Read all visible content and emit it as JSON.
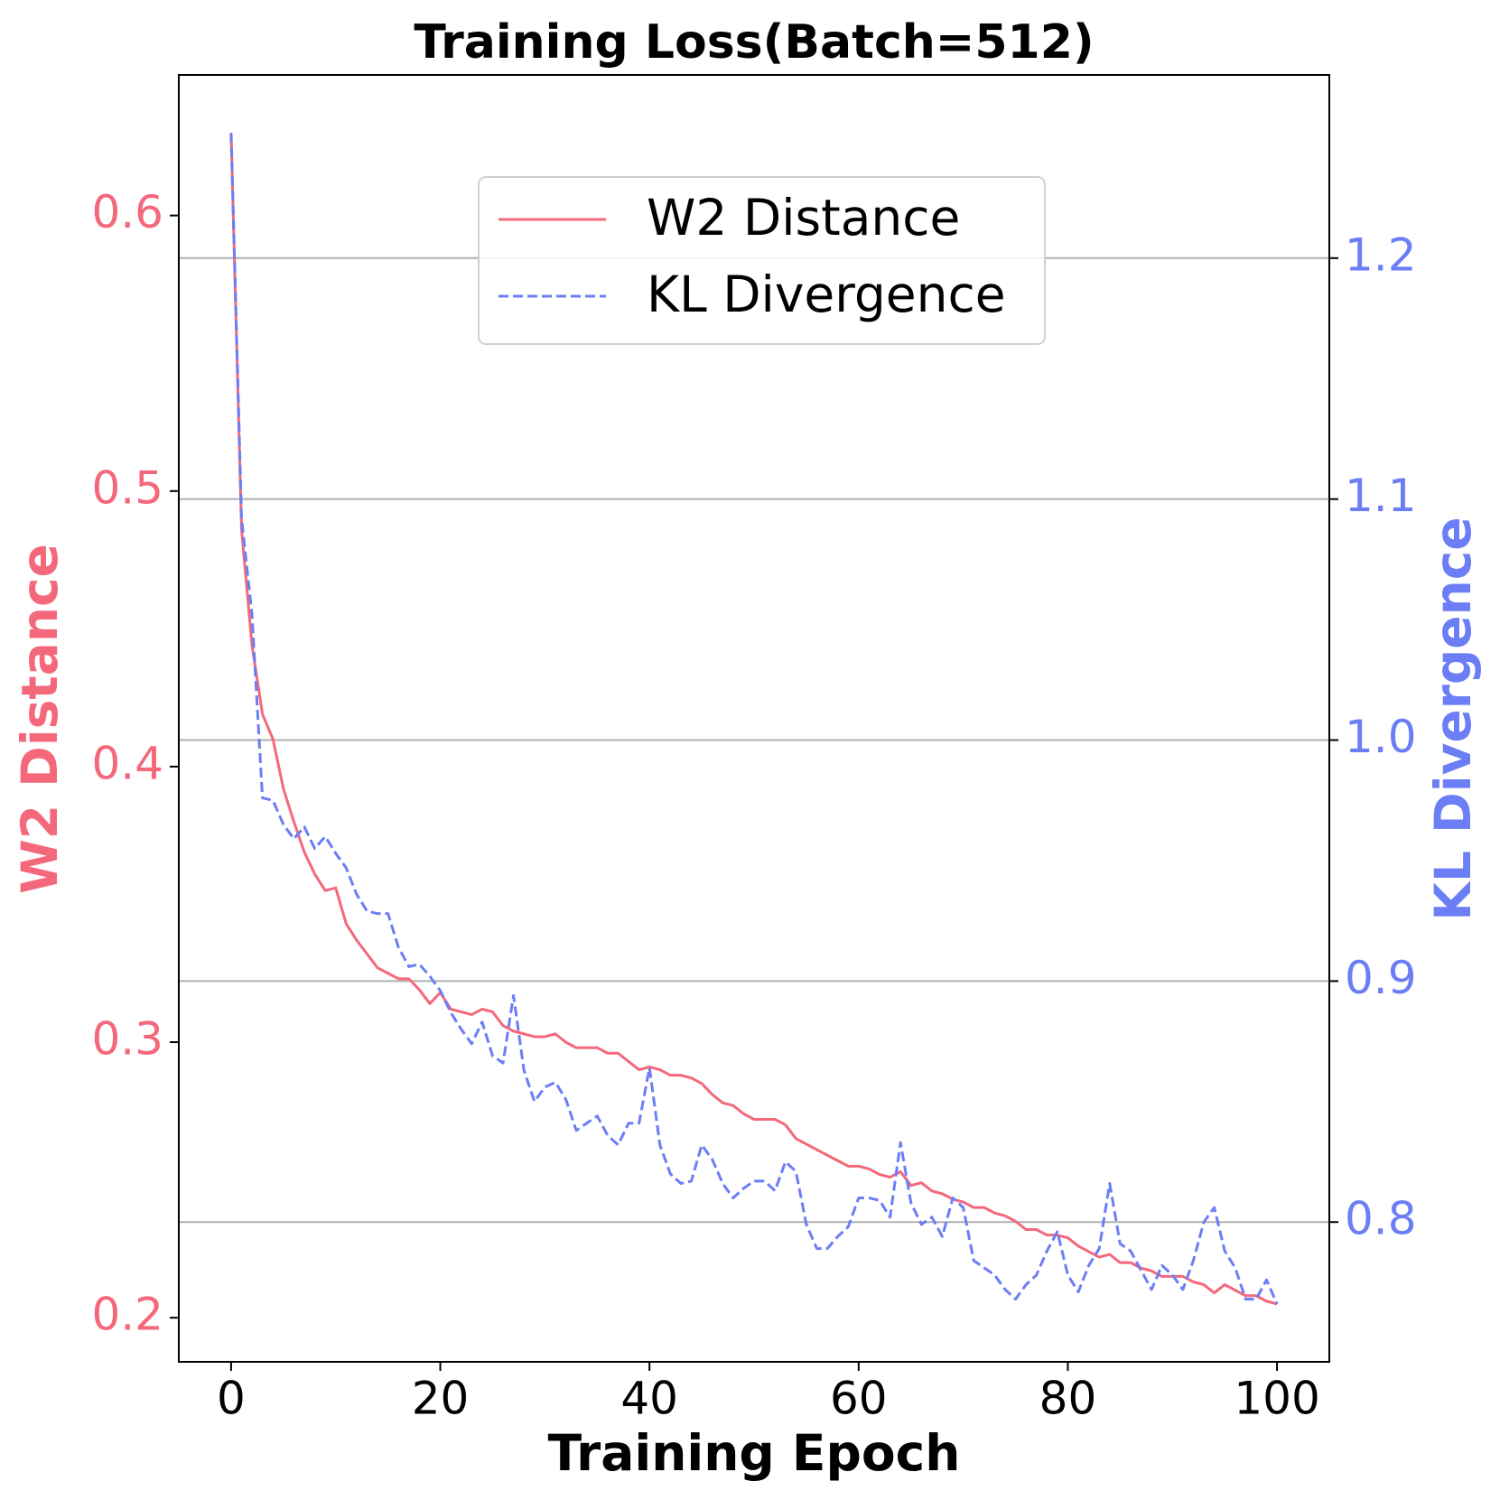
{
  "chart_data": {
    "type": "line",
    "title": "Training Loss(Batch=512)",
    "xlabel": "Training Epoch",
    "ylabel": "W2 Distance",
    "y2label": "KL Divergence",
    "x": [
      0,
      1,
      2,
      3,
      4,
      5,
      6,
      7,
      8,
      9,
      10,
      11,
      12,
      13,
      14,
      15,
      16,
      17,
      18,
      19,
      20,
      21,
      22,
      23,
      24,
      25,
      26,
      27,
      28,
      29,
      30,
      31,
      32,
      33,
      34,
      35,
      36,
      37,
      38,
      39,
      40,
      41,
      42,
      43,
      44,
      45,
      46,
      47,
      48,
      49,
      50,
      51,
      52,
      53,
      54,
      55,
      56,
      57,
      58,
      59,
      60,
      61,
      62,
      63,
      64,
      65,
      66,
      67,
      68,
      69,
      70,
      71,
      72,
      73,
      74,
      75,
      76,
      77,
      78,
      79,
      80,
      81,
      82,
      83,
      84,
      85,
      86,
      87,
      88,
      89,
      90,
      91,
      92,
      93,
      94,
      95,
      96,
      97,
      98,
      99,
      100
    ],
    "series": [
      {
        "name": "W2 Distance",
        "color": "#f4687b",
        "linestyle": "solid",
        "axis": "y",
        "values": [
          0.63,
          0.486,
          0.444,
          0.419,
          0.41,
          0.392,
          0.38,
          0.369,
          0.361,
          0.355,
          0.356,
          0.343,
          0.337,
          0.332,
          0.327,
          0.325,
          0.323,
          0.323,
          0.319,
          0.314,
          0.318,
          0.312,
          0.311,
          0.31,
          0.312,
          0.311,
          0.306,
          0.304,
          0.303,
          0.302,
          0.302,
          0.303,
          0.3,
          0.298,
          0.298,
          0.298,
          0.296,
          0.296,
          0.293,
          0.29,
          0.291,
          0.29,
          0.288,
          0.288,
          0.287,
          0.285,
          0.281,
          0.278,
          0.277,
          0.274,
          0.272,
          0.272,
          0.272,
          0.27,
          0.265,
          0.263,
          0.261,
          0.259,
          0.257,
          0.255,
          0.255,
          0.254,
          0.252,
          0.251,
          0.253,
          0.248,
          0.249,
          0.246,
          0.245,
          0.243,
          0.242,
          0.24,
          0.24,
          0.238,
          0.237,
          0.235,
          0.232,
          0.232,
          0.23,
          0.23,
          0.229,
          0.226,
          0.224,
          0.222,
          0.223,
          0.22,
          0.22,
          0.218,
          0.217,
          0.215,
          0.215,
          0.215,
          0.213,
          0.212,
          0.209,
          0.212,
          0.21,
          0.208,
          0.208,
          0.206,
          0.205
        ]
      },
      {
        "name": "KL Divergence",
        "color": "#6b7ef5",
        "linestyle": "dashed",
        "axis": "y2",
        "values": [
          1.252,
          1.092,
          1.052,
          0.976,
          0.975,
          0.965,
          0.959,
          0.964,
          0.955,
          0.96,
          0.953,
          0.947,
          0.936,
          0.929,
          0.928,
          0.928,
          0.914,
          0.906,
          0.907,
          0.902,
          0.896,
          0.887,
          0.88,
          0.874,
          0.883,
          0.869,
          0.866,
          0.894,
          0.863,
          0.85,
          0.856,
          0.858,
          0.851,
          0.838,
          0.841,
          0.844,
          0.836,
          0.832,
          0.841,
          0.841,
          0.864,
          0.832,
          0.82,
          0.816,
          0.817,
          0.832,
          0.826,
          0.816,
          0.81,
          0.814,
          0.817,
          0.817,
          0.813,
          0.825,
          0.821,
          0.799,
          0.789,
          0.789,
          0.794,
          0.798,
          0.81,
          0.81,
          0.809,
          0.802,
          0.833,
          0.808,
          0.799,
          0.802,
          0.794,
          0.81,
          0.806,
          0.784,
          0.781,
          0.778,
          0.772,
          0.768,
          0.774,
          0.778,
          0.788,
          0.796,
          0.778,
          0.771,
          0.782,
          0.789,
          0.816,
          0.791,
          0.788,
          0.78,
          0.772,
          0.782,
          0.778,
          0.772,
          0.784,
          0.8,
          0.806,
          0.788,
          0.781,
          0.768,
          0.768,
          0.776,
          0.766
        ]
      }
    ],
    "xlim": [
      -5,
      105
    ],
    "xticks": [
      0,
      20,
      40,
      60,
      80,
      100
    ],
    "ylim": [
      0.184,
      0.651
    ],
    "yticks": [
      0.2,
      0.3,
      0.4,
      0.5,
      0.6
    ],
    "y2lim": [
      0.742,
      1.276
    ],
    "y2ticks": [
      0.8,
      0.9,
      {
        "value": 1,
        "label": "1.0"
      },
      1.1,
      1.2
    ],
    "grid": "y2",
    "legend": "upper center"
  }
}
